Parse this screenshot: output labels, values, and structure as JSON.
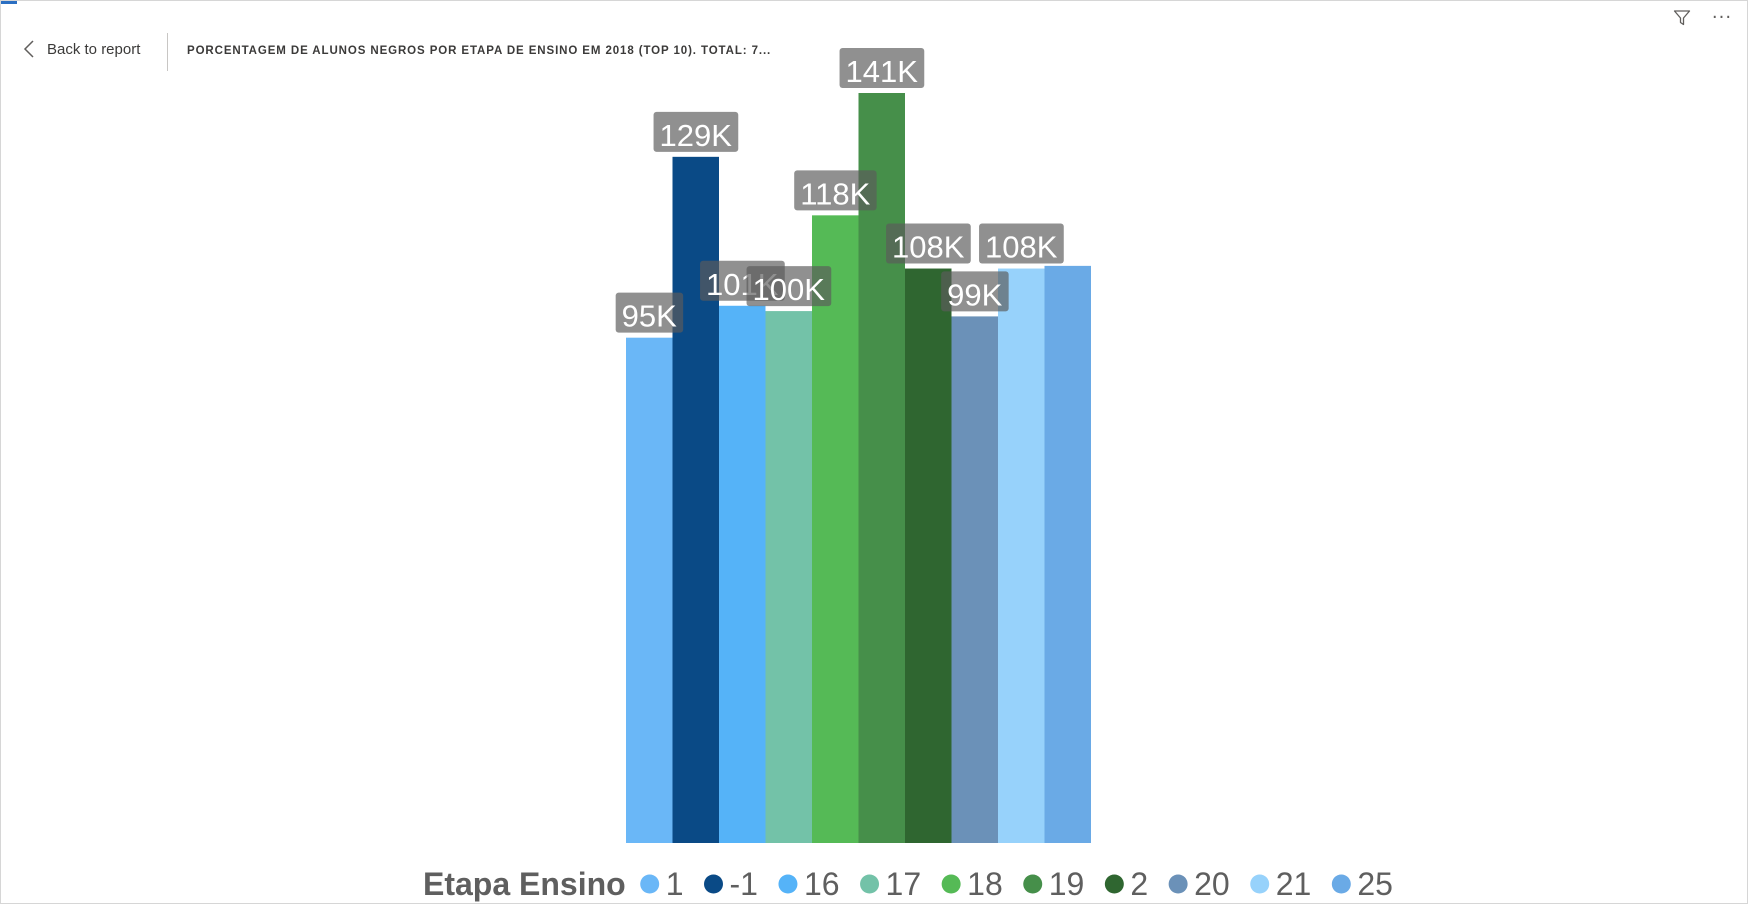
{
  "header": {
    "back_label": "Back to report",
    "title": "PORCENTAGEM DE ALUNOS NEGROS POR ETAPA DE ENSINO EM 2018 (TOP 10). TOTAL: 7..."
  },
  "toolbar": {
    "filter_icon": "filter-icon",
    "more_icon": "more-options-icon",
    "more_label": "···"
  },
  "chart_data": {
    "type": "bar",
    "categories": [
      "1",
      "-1",
      "16",
      "17",
      "18",
      "19",
      "2",
      "20",
      "21",
      "25"
    ],
    "values": [
      95000,
      129000,
      101000,
      100000,
      118000,
      141000,
      108000,
      99000,
      108000,
      108500
    ],
    "data_labels": [
      "95K",
      "129K",
      "101K",
      "100K",
      "118K",
      "141K",
      "108K",
      "99K",
      "108K",
      ""
    ],
    "colors": [
      "#6ab7f7",
      "#0a4a86",
      "#55b3f8",
      "#73c2a8",
      "#55ba56",
      "#468f4a",
      "#2f6630",
      "#6b91b8",
      "#97d2fb",
      "#6aaae6"
    ],
    "legend_title": "Etapa Ensino",
    "legend_position": "bottom",
    "ylim": [
      0,
      141000
    ],
    "grid": false,
    "xlabel": "",
    "ylabel": ""
  }
}
